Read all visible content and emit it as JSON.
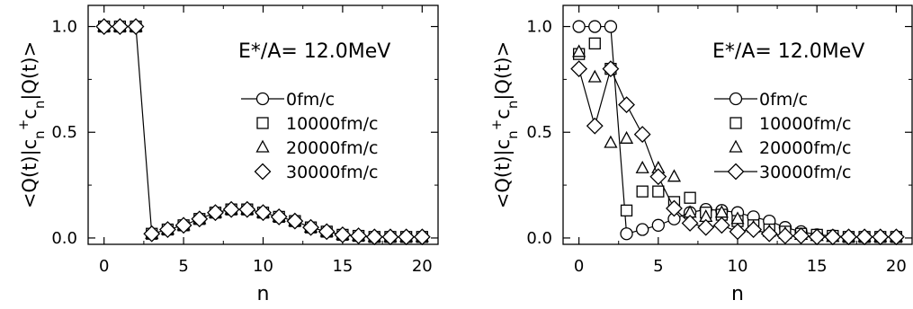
{
  "chart_data": [
    {
      "type": "scatter",
      "title": "E*/A= 12.0MeV",
      "xlabel": "n",
      "ylabel": "<Q(t)|c_n^+ c_n|Q(t)>",
      "xlim": [
        -1,
        21
      ],
      "ylim": [
        -0.03,
        1.1
      ],
      "xticks": [
        0,
        5,
        10,
        15,
        20
      ],
      "yticks": [
        0.0,
        0.5,
        1.0
      ],
      "ytick_labels": [
        "0.0",
        "0.5",
        "1.0"
      ],
      "legend_position": "right",
      "series": [
        {
          "name": "0fm/c",
          "marker": "circle",
          "line": true,
          "x": [
            0,
            1,
            2,
            3,
            4,
            5,
            6,
            7,
            8,
            9,
            10,
            11,
            12,
            13,
            14,
            15,
            16,
            17,
            18,
            19,
            20
          ],
          "y": [
            1.0,
            1.0,
            1.0,
            0.02,
            0.04,
            0.06,
            0.09,
            0.12,
            0.135,
            0.135,
            0.12,
            0.1,
            0.08,
            0.05,
            0.03,
            0.015,
            0.01,
            0.005,
            0.005,
            0.005,
            0.005
          ]
        },
        {
          "name": "10000fm/c",
          "marker": "square",
          "line": false,
          "x": [
            0,
            1,
            2,
            3,
            4,
            5,
            6,
            7,
            8,
            9,
            10,
            11,
            12,
            13,
            14,
            15,
            16,
            17,
            18,
            19,
            20
          ],
          "y": [
            1.0,
            1.0,
            1.0,
            0.02,
            0.04,
            0.06,
            0.09,
            0.12,
            0.135,
            0.135,
            0.12,
            0.1,
            0.08,
            0.05,
            0.03,
            0.015,
            0.01,
            0.005,
            0.005,
            0.005,
            0.005
          ]
        },
        {
          "name": "20000fm/c",
          "marker": "triangle",
          "line": false,
          "x": [
            0,
            1,
            2,
            3,
            4,
            5,
            6,
            7,
            8,
            9,
            10,
            11,
            12,
            13,
            14,
            15,
            16,
            17,
            18,
            19,
            20
          ],
          "y": [
            1.0,
            1.0,
            1.0,
            0.02,
            0.04,
            0.06,
            0.09,
            0.12,
            0.135,
            0.135,
            0.12,
            0.1,
            0.08,
            0.05,
            0.03,
            0.015,
            0.01,
            0.005,
            0.005,
            0.005,
            0.005
          ]
        },
        {
          "name": "30000fm/c",
          "marker": "diamond",
          "line": false,
          "x": [
            0,
            1,
            2,
            3,
            4,
            5,
            6,
            7,
            8,
            9,
            10,
            11,
            12,
            13,
            14,
            15,
            16,
            17,
            18,
            19,
            20
          ],
          "y": [
            1.0,
            1.0,
            1.0,
            0.02,
            0.04,
            0.06,
            0.09,
            0.12,
            0.135,
            0.135,
            0.12,
            0.1,
            0.08,
            0.05,
            0.03,
            0.015,
            0.01,
            0.005,
            0.005,
            0.005,
            0.005
          ]
        }
      ]
    },
    {
      "type": "scatter",
      "title": "E*/A= 12.0MeV",
      "xlabel": "n",
      "ylabel": "<Q(t)|c_n^+ c_n|Q(t)>",
      "xlim": [
        -1,
        21
      ],
      "ylim": [
        -0.03,
        1.1
      ],
      "xticks": [
        0,
        5,
        10,
        15,
        20
      ],
      "yticks": [
        0.0,
        0.5,
        1.0
      ],
      "ytick_labels": [
        "0.0",
        "0.5",
        "1.0"
      ],
      "legend_position": "right",
      "series": [
        {
          "name": "0fm/c",
          "marker": "circle",
          "line": true,
          "x": [
            0,
            1,
            2,
            3,
            4,
            5,
            6,
            7,
            8,
            9,
            10,
            11,
            12,
            13,
            14,
            15,
            16,
            17,
            18,
            19,
            20
          ],
          "y": [
            1.0,
            1.0,
            1.0,
            0.02,
            0.04,
            0.06,
            0.09,
            0.12,
            0.135,
            0.13,
            0.12,
            0.1,
            0.08,
            0.05,
            0.03,
            0.015,
            0.01,
            0.005,
            0.005,
            0.005,
            0.005
          ]
        },
        {
          "name": "10000fm/c",
          "marker": "square",
          "line": false,
          "x": [
            0,
            1,
            2,
            3,
            4,
            5,
            6,
            7,
            8,
            9,
            10,
            11,
            12,
            13,
            14,
            15,
            16,
            17,
            18,
            19,
            20
          ],
          "y": [
            0.87,
            0.92,
            0.8,
            0.13,
            0.22,
            0.22,
            0.17,
            0.19,
            0.12,
            0.11,
            0.08,
            0.06,
            0.04,
            0.03,
            0.02,
            0.015,
            0.01,
            0.005,
            0.005,
            0.005,
            0.005
          ]
        },
        {
          "name": "20000fm/c",
          "marker": "triangle",
          "line": false,
          "x": [
            0,
            1,
            2,
            3,
            4,
            5,
            6,
            7,
            8,
            9,
            10,
            11,
            12,
            13,
            14,
            15,
            16,
            17,
            18,
            19,
            20
          ],
          "y": [
            0.88,
            0.76,
            0.45,
            0.47,
            0.33,
            0.33,
            0.29,
            0.12,
            0.1,
            0.12,
            0.09,
            0.05,
            0.03,
            0.02,
            0.015,
            0.01,
            0.005,
            0.005,
            0.005,
            0.005,
            0.005
          ]
        },
        {
          "name": "30000fm/c",
          "marker": "diamond",
          "line": true,
          "x": [
            0,
            1,
            2,
            3,
            4,
            5,
            6,
            7,
            8,
            9,
            10,
            11,
            12,
            13,
            14,
            15,
            16,
            17,
            18,
            19,
            20
          ],
          "y": [
            0.8,
            0.53,
            0.8,
            0.63,
            0.49,
            0.29,
            0.14,
            0.07,
            0.05,
            0.06,
            0.03,
            0.04,
            0.02,
            0.01,
            0.01,
            0.005,
            0.005,
            0.005,
            0.005,
            0.005,
            0.005
          ]
        }
      ]
    }
  ]
}
